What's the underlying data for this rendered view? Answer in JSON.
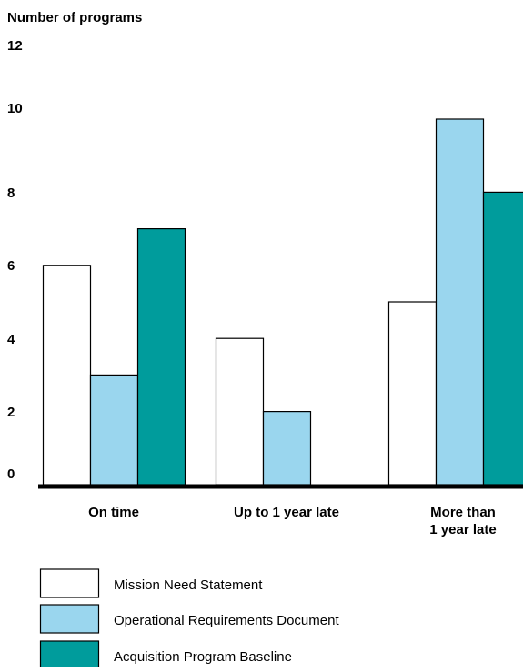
{
  "chart_data": {
    "type": "bar",
    "title": "",
    "ylabel": "Number of programs",
    "xlabel": "",
    "ylim": [
      0,
      12
    ],
    "yticks": [
      "0",
      "2",
      "4",
      "6",
      "8",
      "10",
      "12"
    ],
    "categories": [
      [
        "On time"
      ],
      [
        "Up to 1 year late"
      ],
      [
        "More than",
        "1 year late"
      ]
    ],
    "series": [
      {
        "name": "Mission Need Statement",
        "values": [
          6,
          4,
          5
        ],
        "color": "#ffffff"
      },
      {
        "name": "Operational Requirements Document",
        "values": [
          3,
          2,
          10
        ],
        "color": "#9ad6ee"
      },
      {
        "name": "Acquisition Program Baseline",
        "values": [
          7,
          0,
          8
        ],
        "color": "#009c9c"
      }
    ],
    "grid": false,
    "legend_position": "bottom-left",
    "bar_outline": "#000000",
    "axis_color": "#000000"
  }
}
